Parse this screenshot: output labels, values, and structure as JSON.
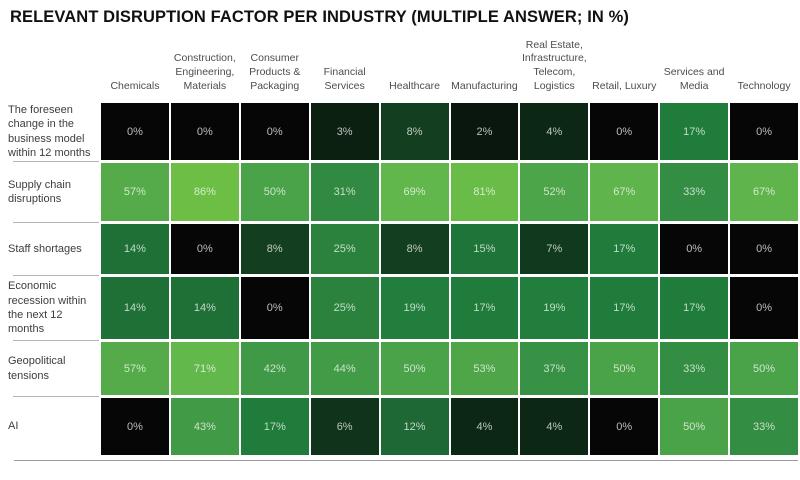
{
  "title": "RELEVANT DISRUPTION FACTOR PER INDUSTRY (MULTIPLE ANSWER; IN %)",
  "colors": {
    "background": "#ffffff",
    "title_text": "#111111",
    "header_text": "#4d4d4d",
    "row_label_text": "#3d3d3d",
    "cell_text": "rgba(255,255,255,0.72)",
    "label_separator": "#b3b3b3",
    "bottom_rule": "#9b9b9b"
  },
  "chart_data": {
    "type": "heatmap",
    "title": "RELEVANT DISRUPTION FACTOR PER INDUSTRY (MULTIPLE ANSWER; IN %)",
    "unit": "%",
    "value_range": [
      0,
      86
    ],
    "legend": "none",
    "columns": [
      {
        "name": "Chemicals",
        "lines": [
          "Chemicals"
        ]
      },
      {
        "name": "Construction, Engineering, Materials",
        "lines": [
          "Construction,",
          "Engineering,",
          "Materials"
        ]
      },
      {
        "name": "Consumer Products & Packaging",
        "lines": [
          "Consumer",
          "Products &",
          "Packaging"
        ]
      },
      {
        "name": "Financial Services",
        "lines": [
          "Financial",
          "Services"
        ]
      },
      {
        "name": "Healthcare",
        "lines": [
          "Healthcare"
        ]
      },
      {
        "name": "Manufacturing",
        "lines": [
          "Manufacturing"
        ]
      },
      {
        "name": "Real Estate, Infrastructure, Telecom, Logistics",
        "lines": [
          "Real Estate,",
          "Infrastructure,",
          "Telecom,",
          "Logistics"
        ]
      },
      {
        "name": "Retail, Luxury",
        "lines": [
          "Retail, Luxury"
        ]
      },
      {
        "name": "Services and Media",
        "lines": [
          "Services and",
          "Media"
        ]
      },
      {
        "name": "Technology",
        "lines": [
          "Technology"
        ]
      }
    ],
    "rows": [
      {
        "label": "The foreseen change in the business model within 12 months",
        "values": [
          0,
          0,
          0,
          3,
          8,
          2,
          4,
          0,
          17,
          0
        ]
      },
      {
        "label": "Supply chain disruptions",
        "values": [
          57,
          86,
          50,
          31,
          69,
          81,
          52,
          67,
          33,
          67
        ]
      },
      {
        "label": "Staff shortages",
        "values": [
          14,
          0,
          8,
          25,
          8,
          15,
          7,
          17,
          0,
          0
        ]
      },
      {
        "label": "Economic recession within the next 12 months",
        "values": [
          14,
          14,
          0,
          25,
          19,
          17,
          19,
          17,
          17,
          0
        ]
      },
      {
        "label": "Geopolitical tensions",
        "values": [
          57,
          71,
          42,
          44,
          50,
          53,
          37,
          50,
          33,
          50
        ]
      },
      {
        "label": "AI",
        "values": [
          0,
          43,
          17,
          6,
          12,
          4,
          4,
          0,
          50,
          33
        ]
      }
    ],
    "color_scale": {
      "description": "black at 0% ramping to bright green at max",
      "stops": [
        {
          "v": 0,
          "color": "#060606"
        },
        {
          "v": 4,
          "color": "#0c2815"
        },
        {
          "v": 8,
          "color": "#133e20"
        },
        {
          "v": 12,
          "color": "#1d6835"
        },
        {
          "v": 17,
          "color": "#1f7c3b"
        },
        {
          "v": 25,
          "color": "#2a823d"
        },
        {
          "v": 37,
          "color": "#389245"
        },
        {
          "v": 50,
          "color": "#4aa348"
        },
        {
          "v": 57,
          "color": "#55ab4a"
        },
        {
          "v": 71,
          "color": "#63b84c"
        },
        {
          "v": 86,
          "color": "#6cbe45"
        }
      ]
    }
  }
}
